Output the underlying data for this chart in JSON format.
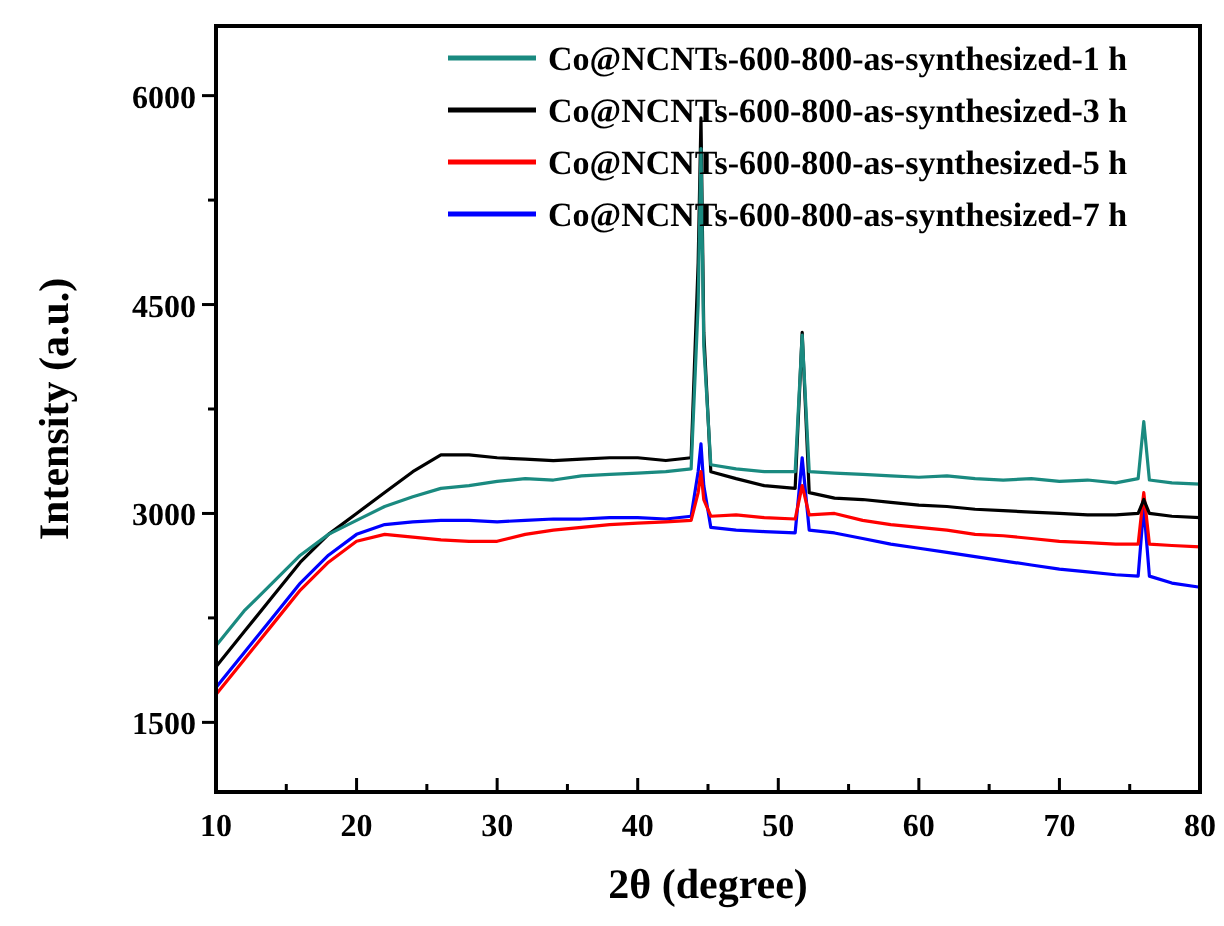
{
  "chart_data": {
    "type": "line",
    "xlabel": "2θ (degree)",
    "ylabel": "Intensity (a.u.)",
    "x": [
      10,
      12,
      14,
      16,
      18,
      20,
      22,
      24,
      26,
      28,
      30,
      32,
      34,
      36,
      38,
      40,
      42,
      43.8,
      44.3,
      44.5,
      44.7,
      45.2,
      47,
      49,
      51.2,
      51.7,
      52.2,
      54,
      56,
      58,
      60,
      62,
      64,
      66,
      68,
      70,
      72,
      74,
      75.6,
      76,
      76.4,
      78,
      80
    ],
    "series": [
      {
        "name": "Co@NCNTs-600-800-as-synthesized-1 h",
        "color": "#1a8a80",
        "values": [
          2050,
          2300,
          2500,
          2700,
          2850,
          2950,
          3050,
          3120,
          3180,
          3200,
          3230,
          3250,
          3240,
          3270,
          3280,
          3290,
          3300,
          3320,
          4500,
          5620,
          4200,
          3350,
          3320,
          3300,
          3300,
          4280,
          3300,
          3290,
          3280,
          3270,
          3260,
          3270,
          3250,
          3240,
          3250,
          3230,
          3240,
          3220,
          3250,
          3660,
          3240,
          3220,
          3210
        ]
      },
      {
        "name": "Co@NCNTs-600-800-as-synthesized-3 h",
        "color": "#000000",
        "values": [
          1900,
          2150,
          2400,
          2650,
          2850,
          3000,
          3150,
          3300,
          3420,
          3420,
          3400,
          3390,
          3380,
          3390,
          3400,
          3400,
          3380,
          3400,
          4800,
          5840,
          4300,
          3300,
          3250,
          3200,
          3180,
          4300,
          3150,
          3110,
          3100,
          3080,
          3060,
          3050,
          3030,
          3020,
          3010,
          3000,
          2990,
          2990,
          3000,
          3100,
          3000,
          2980,
          2970
        ]
      },
      {
        "name": "Co@NCNTs-600-800-as-synthesized-5 h",
        "color": "#ff0000",
        "values": [
          1700,
          1950,
          2200,
          2450,
          2650,
          2800,
          2850,
          2830,
          2810,
          2800,
          2800,
          2850,
          2880,
          2900,
          2920,
          2930,
          2940,
          2950,
          3150,
          3300,
          3100,
          2980,
          2990,
          2970,
          2960,
          3200,
          2990,
          3000,
          2950,
          2920,
          2900,
          2880,
          2850,
          2840,
          2820,
          2800,
          2790,
          2780,
          2780,
          3150,
          2780,
          2770,
          2760
        ]
      },
      {
        "name": "Co@NCNTs-600-800-as-synthesized-7 h",
        "color": "#0000ff",
        "values": [
          1750,
          2000,
          2250,
          2500,
          2700,
          2850,
          2920,
          2940,
          2950,
          2950,
          2940,
          2950,
          2960,
          2960,
          2970,
          2970,
          2960,
          2980,
          3300,
          3500,
          3200,
          2900,
          2880,
          2870,
          2860,
          3400,
          2880,
          2860,
          2820,
          2780,
          2750,
          2720,
          2690,
          2660,
          2630,
          2600,
          2580,
          2560,
          2550,
          3050,
          2550,
          2500,
          2470
        ]
      }
    ],
    "xlim": [
      10,
      80
    ],
    "xticks": [
      10,
      {
        "value": 15,
        "label": null
      },
      20,
      {
        "value": 25,
        "label": null
      },
      30,
      {
        "value": 35,
        "label": null
      },
      40,
      {
        "value": 45,
        "label": null
      },
      50,
      {
        "value": 55,
        "label": null
      },
      60,
      {
        "value": 65,
        "label": null
      },
      70,
      {
        "value": 75,
        "label": null
      },
      80
    ],
    "ylim": [
      1000,
      6500
    ],
    "yticks": [
      1500,
      {
        "value": 2250,
        "label": null
      },
      3000,
      {
        "value": 3750,
        "label": null
      },
      4500,
      {
        "value": 5250,
        "label": null
      },
      6000
    ],
    "grid": false,
    "legend": "top right",
    "marker": "none",
    "line_style": "solid"
  }
}
